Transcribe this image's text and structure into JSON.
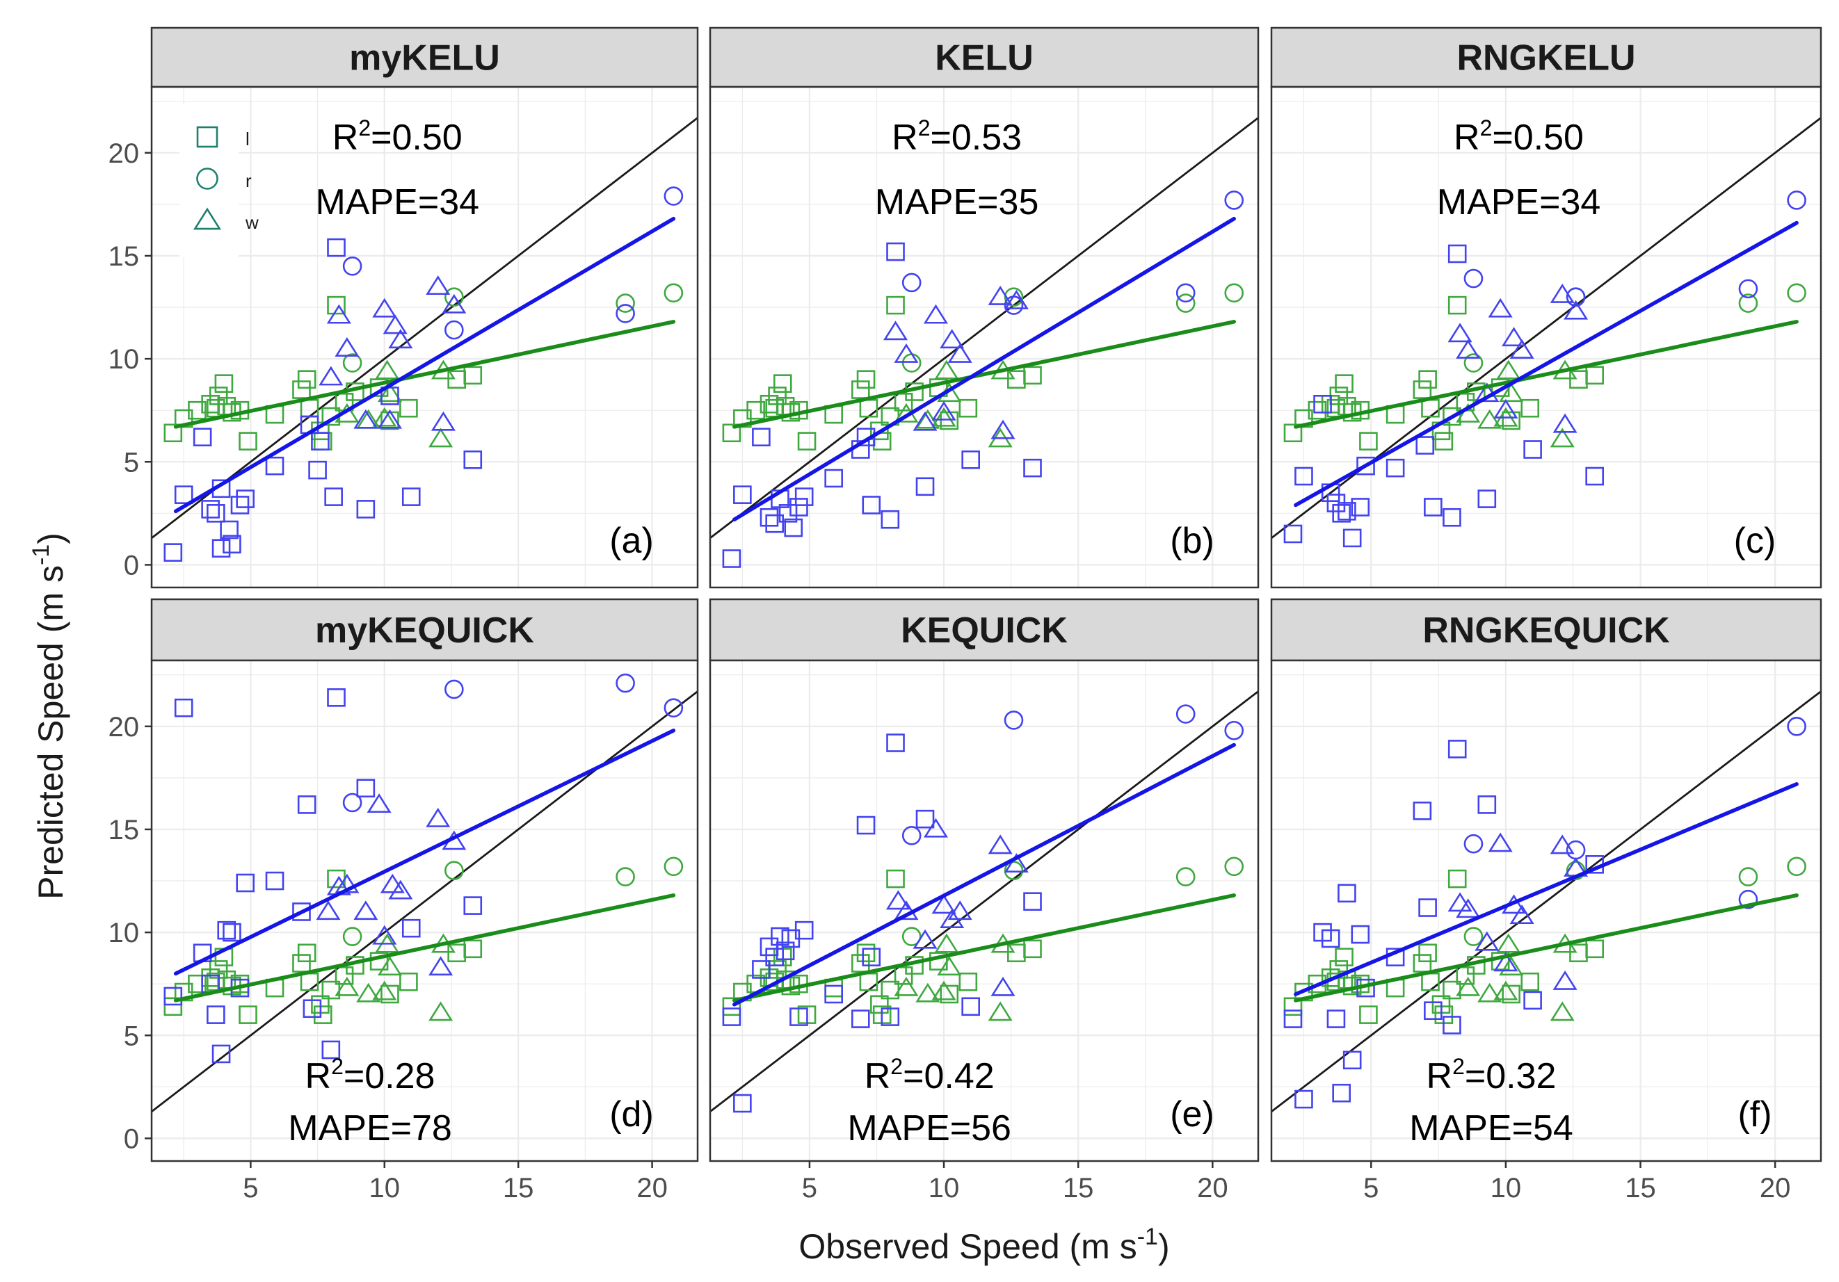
{
  "chart_data": {
    "type": "scatter",
    "layout": "facet-grid-2x3",
    "xlabel_text": "Observed Speed (m s",
    "xlabel_exp": "-1",
    "xlabel_close": ")",
    "ylabel_text": "Predicted Speed (m s",
    "ylabel_exp": "-1",
    "ylabel_close": ")",
    "xlim": [
      1.3,
      21.7
    ],
    "ylim": [
      -1.1,
      23.2
    ],
    "x_ticks": [
      5,
      10,
      15,
      20
    ],
    "y_ticks": [
      0,
      5,
      10,
      15,
      20
    ],
    "legend": {
      "position": "top-left",
      "entries": [
        {
          "shape": "square",
          "label": "l"
        },
        {
          "shape": "circle",
          "label": "r"
        },
        {
          "shape": "triangle",
          "label": "w"
        }
      ]
    },
    "colors": {
      "blue": "#4343f0",
      "green": "#3fa83f",
      "blue_line": "#1515e6",
      "green_line": "#1a8c1a",
      "identity": "#1a1a1a"
    },
    "green_fit": [
      [
        2.2,
        6.7
      ],
      [
        20.8,
        11.8
      ]
    ],
    "green_points": {
      "l": [
        [
          2.1,
          6.4
        ],
        [
          2.5,
          7.1
        ],
        [
          3.0,
          7.5
        ],
        [
          3.5,
          7.8
        ],
        [
          3.7,
          7.6
        ],
        [
          3.8,
          8.2
        ],
        [
          4.0,
          8.8
        ],
        [
          4.1,
          7.7
        ],
        [
          4.3,
          7.4
        ],
        [
          4.6,
          7.5
        ],
        [
          4.9,
          6.0
        ],
        [
          5.9,
          7.3
        ],
        [
          6.9,
          8.5
        ],
        [
          7.1,
          9.0
        ],
        [
          7.2,
          7.6
        ],
        [
          7.6,
          6.5
        ],
        [
          7.7,
          6.0
        ],
        [
          8.0,
          7.2
        ],
        [
          8.2,
          12.6
        ],
        [
          8.5,
          7.9
        ],
        [
          8.9,
          8.4
        ],
        [
          9.8,
          8.6
        ],
        [
          10.2,
          7.0
        ],
        [
          10.9,
          7.6
        ],
        [
          12.7,
          9.0
        ],
        [
          13.3,
          9.2
        ]
      ],
      "r": [
        [
          8.8,
          9.8
        ],
        [
          12.6,
          13.0
        ],
        [
          19.0,
          12.7
        ],
        [
          20.8,
          13.2
        ]
      ],
      "w": [
        [
          8.6,
          7.3
        ],
        [
          9.4,
          7.0
        ],
        [
          10.0,
          7.1
        ],
        [
          10.2,
          8.3
        ],
        [
          12.1,
          6.1
        ],
        [
          12.2,
          9.4
        ],
        [
          10.1,
          9.4
        ]
      ]
    },
    "panels": [
      {
        "title": "myKELU",
        "tag": "(a)",
        "r2_label": "R",
        "r2_sup": "2",
        "r2_value": "=0.50",
        "mape": "MAPE=34",
        "annot_pos": "top",
        "legend": true,
        "blue_fit": [
          [
            2.2,
            2.6
          ],
          [
            20.8,
            16.8
          ]
        ],
        "blue": {
          "l": [
            [
              2.1,
              0.6
            ],
            [
              2.5,
              3.4
            ],
            [
              3.2,
              6.2
            ],
            [
              3.5,
              2.7
            ],
            [
              3.7,
              2.5
            ],
            [
              3.9,
              3.7
            ],
            [
              3.9,
              0.8
            ],
            [
              4.2,
              1.7
            ],
            [
              4.3,
              1.0
            ],
            [
              4.6,
              2.9
            ],
            [
              4.8,
              3.2
            ],
            [
              5.9,
              4.8
            ],
            [
              7.5,
              4.6
            ],
            [
              8.1,
              3.3
            ],
            [
              8.2,
              15.4
            ],
            [
              9.3,
              2.7
            ],
            [
              11.0,
              3.3
            ],
            [
              13.3,
              5.1
            ],
            [
              7.2,
              6.8
            ],
            [
              7.6,
              6.0
            ],
            [
              10.2,
              8.2
            ]
          ],
          "r": [
            [
              8.8,
              14.5
            ],
            [
              12.6,
              11.4
            ],
            [
              19.0,
              12.2
            ],
            [
              20.8,
              17.9
            ]
          ],
          "w": [
            [
              8.0,
              9.1
            ],
            [
              8.3,
              12.1
            ],
            [
              8.6,
              10.5
            ],
            [
              9.3,
              7.0
            ],
            [
              10.0,
              12.4
            ],
            [
              10.4,
              11.6
            ],
            [
              10.6,
              10.9
            ],
            [
              12.0,
              13.5
            ],
            [
              12.2,
              6.9
            ],
            [
              12.6,
              12.6
            ],
            [
              10.2,
              7.0
            ]
          ]
        }
      },
      {
        "title": "KELU",
        "tag": "(b)",
        "r2_label": "R",
        "r2_sup": "2",
        "r2_value": "=0.53",
        "mape": "MAPE=35",
        "annot_pos": "top",
        "legend": false,
        "blue_fit": [
          [
            2.2,
            2.2
          ],
          [
            20.8,
            16.8
          ]
        ],
        "blue": {
          "l": [
            [
              2.1,
              0.3
            ],
            [
              2.5,
              3.4
            ],
            [
              3.2,
              6.2
            ],
            [
              3.5,
              2.3
            ],
            [
              3.7,
              2.0
            ],
            [
              3.9,
              3.2
            ],
            [
              4.2,
              2.5
            ],
            [
              4.4,
              1.8
            ],
            [
              4.6,
              2.8
            ],
            [
              4.8,
              3.3
            ],
            [
              5.9,
              4.2
            ],
            [
              6.9,
              5.6
            ],
            [
              7.1,
              6.2
            ],
            [
              7.3,
              2.9
            ],
            [
              8.0,
              2.2
            ],
            [
              8.2,
              15.2
            ],
            [
              9.3,
              3.8
            ],
            [
              11.0,
              5.1
            ],
            [
              13.3,
              4.7
            ]
          ],
          "r": [
            [
              8.8,
              13.7
            ],
            [
              12.6,
              12.6
            ],
            [
              19.0,
              13.2
            ],
            [
              20.8,
              17.7
            ]
          ],
          "w": [
            [
              8.2,
              11.3
            ],
            [
              8.6,
              10.2
            ],
            [
              9.3,
              6.9
            ],
            [
              9.7,
              12.1
            ],
            [
              10.0,
              7.4
            ],
            [
              10.3,
              10.9
            ],
            [
              10.6,
              10.2
            ],
            [
              12.1,
              13.0
            ],
            [
              12.2,
              6.5
            ],
            [
              12.7,
              12.8
            ]
          ]
        }
      },
      {
        "title": "RNGKELU",
        "tag": "(c)",
        "r2_label": "R",
        "r2_sup": "2",
        "r2_value": "=0.50",
        "mape": "MAPE=34",
        "annot_pos": "top",
        "legend": false,
        "blue_fit": [
          [
            2.2,
            2.9
          ],
          [
            20.8,
            16.6
          ]
        ],
        "blue": {
          "l": [
            [
              2.1,
              1.5
            ],
            [
              2.5,
              4.3
            ],
            [
              3.2,
              7.8
            ],
            [
              3.5,
              3.5
            ],
            [
              3.7,
              3.0
            ],
            [
              3.9,
              2.5
            ],
            [
              4.1,
              2.6
            ],
            [
              4.3,
              1.3
            ],
            [
              4.6,
              2.8
            ],
            [
              4.8,
              4.8
            ],
            [
              5.9,
              4.7
            ],
            [
              7.0,
              5.8
            ],
            [
              7.3,
              2.8
            ],
            [
              8.0,
              2.3
            ],
            [
              8.2,
              15.1
            ],
            [
              9.3,
              3.2
            ],
            [
              11.0,
              5.6
            ],
            [
              13.3,
              4.3
            ]
          ],
          "r": [
            [
              8.8,
              13.9
            ],
            [
              12.6,
              13.0
            ],
            [
              19.0,
              13.4
            ],
            [
              20.8,
              17.7
            ]
          ],
          "w": [
            [
              8.3,
              11.2
            ],
            [
              8.6,
              10.4
            ],
            [
              9.3,
              8.3
            ],
            [
              9.8,
              12.4
            ],
            [
              10.0,
              7.5
            ],
            [
              10.3,
              11.0
            ],
            [
              10.6,
              10.4
            ],
            [
              12.1,
              13.1
            ],
            [
              12.2,
              6.8
            ],
            [
              12.6,
              12.3
            ]
          ]
        }
      },
      {
        "title": "myKEQUICK",
        "tag": "(d)",
        "r2_label": "R",
        "r2_sup": "2",
        "r2_value": "=0.28",
        "mape": "MAPE=78",
        "annot_pos": "bottom",
        "legend": false,
        "blue_fit": [
          [
            2.2,
            8.0
          ],
          [
            20.8,
            19.8
          ]
        ],
        "blue": {
          "l": [
            [
              2.1,
              6.9
            ],
            [
              2.5,
              20.9
            ],
            [
              3.2,
              9.0
            ],
            [
              3.5,
              7.5
            ],
            [
              3.7,
              6.0
            ],
            [
              3.9,
              4.1
            ],
            [
              4.1,
              10.1
            ],
            [
              4.3,
              10.0
            ],
            [
              4.6,
              7.3
            ],
            [
              4.8,
              12.4
            ],
            [
              5.9,
              12.5
            ],
            [
              6.9,
              11.0
            ],
            [
              7.1,
              16.2
            ],
            [
              7.3,
              6.3
            ],
            [
              8.0,
              4.3
            ],
            [
              8.2,
              21.4
            ],
            [
              9.3,
              17.0
            ],
            [
              11.0,
              10.2
            ],
            [
              13.3,
              11.3
            ]
          ],
          "r": [
            [
              8.8,
              16.3
            ],
            [
              12.6,
              21.8
            ],
            [
              19.0,
              22.1
            ],
            [
              20.8,
              20.9
            ]
          ],
          "w": [
            [
              7.9,
              11.0
            ],
            [
              8.3,
              12.2
            ],
            [
              8.6,
              12.3
            ],
            [
              9.3,
              11.0
            ],
            [
              9.8,
              16.2
            ],
            [
              10.0,
              9.8
            ],
            [
              10.3,
              12.3
            ],
            [
              10.6,
              12.0
            ],
            [
              12.0,
              15.5
            ],
            [
              12.1,
              8.3
            ],
            [
              12.6,
              14.4
            ]
          ]
        }
      },
      {
        "title": "KEQUICK",
        "tag": "(e)",
        "r2_label": "R",
        "r2_sup": "2",
        "r2_value": "=0.42",
        "mape": "MAPE=56",
        "annot_pos": "bottom",
        "legend": false,
        "blue_fit": [
          [
            2.2,
            6.5
          ],
          [
            20.8,
            19.1
          ]
        ],
        "blue": {
          "l": [
            [
              2.1,
              5.9
            ],
            [
              2.5,
              1.7
            ],
            [
              3.2,
              8.2
            ],
            [
              3.5,
              9.3
            ],
            [
              3.7,
              8.8
            ],
            [
              3.9,
              9.8
            ],
            [
              4.1,
              9.1
            ],
            [
              4.3,
              9.7
            ],
            [
              4.6,
              5.9
            ],
            [
              4.8,
              10.1
            ],
            [
              5.9,
              7.0
            ],
            [
              6.9,
              5.8
            ],
            [
              7.1,
              15.2
            ],
            [
              7.3,
              8.8
            ],
            [
              8.0,
              5.9
            ],
            [
              8.2,
              19.2
            ],
            [
              9.3,
              15.5
            ],
            [
              11.0,
              6.4
            ],
            [
              13.3,
              11.5
            ]
          ],
          "r": [
            [
              8.8,
              14.7
            ],
            [
              12.6,
              20.3
            ],
            [
              19.0,
              20.6
            ],
            [
              20.8,
              19.8
            ]
          ],
          "w": [
            [
              8.3,
              11.5
            ],
            [
              8.6,
              11.0
            ],
            [
              9.3,
              9.6
            ],
            [
              9.7,
              15.0
            ],
            [
              10.0,
              11.3
            ],
            [
              10.3,
              10.6
            ],
            [
              10.6,
              11.0
            ],
            [
              12.1,
              14.2
            ],
            [
              12.2,
              7.3
            ],
            [
              12.7,
              13.3
            ]
          ]
        }
      },
      {
        "title": "RNGKEQUICK",
        "tag": "(f)",
        "r2_label": "R",
        "r2_sup": "2",
        "r2_value": "=0.32",
        "mape": "MAPE=54",
        "annot_pos": "bottom",
        "legend": false,
        "blue_fit": [
          [
            2.2,
            7.0
          ],
          [
            20.8,
            17.2
          ]
        ],
        "blue": {
          "l": [
            [
              2.1,
              5.8
            ],
            [
              2.5,
              1.9
            ],
            [
              3.2,
              10.0
            ],
            [
              3.5,
              9.7
            ],
            [
              3.7,
              5.8
            ],
            [
              3.9,
              2.2
            ],
            [
              4.1,
              11.9
            ],
            [
              4.3,
              3.8
            ],
            [
              4.6,
              9.9
            ],
            [
              4.8,
              7.3
            ],
            [
              5.9,
              8.8
            ],
            [
              6.9,
              15.9
            ],
            [
              7.1,
              11.2
            ],
            [
              7.3,
              6.2
            ],
            [
              8.0,
              5.5
            ],
            [
              8.2,
              18.9
            ],
            [
              9.3,
              16.2
            ],
            [
              11.0,
              6.7
            ],
            [
              13.3,
              13.3
            ]
          ],
          "r": [
            [
              8.8,
              14.3
            ],
            [
              12.6,
              14.0
            ],
            [
              19.0,
              11.6
            ],
            [
              20.8,
              20.0
            ]
          ],
          "w": [
            [
              8.3,
              11.4
            ],
            [
              8.6,
              11.1
            ],
            [
              9.3,
              9.5
            ],
            [
              9.8,
              14.3
            ],
            [
              10.0,
              8.5
            ],
            [
              10.3,
              11.3
            ],
            [
              10.6,
              10.8
            ],
            [
              12.1,
              14.2
            ],
            [
              12.2,
              7.6
            ],
            [
              12.6,
              13.1
            ]
          ]
        }
      }
    ]
  }
}
